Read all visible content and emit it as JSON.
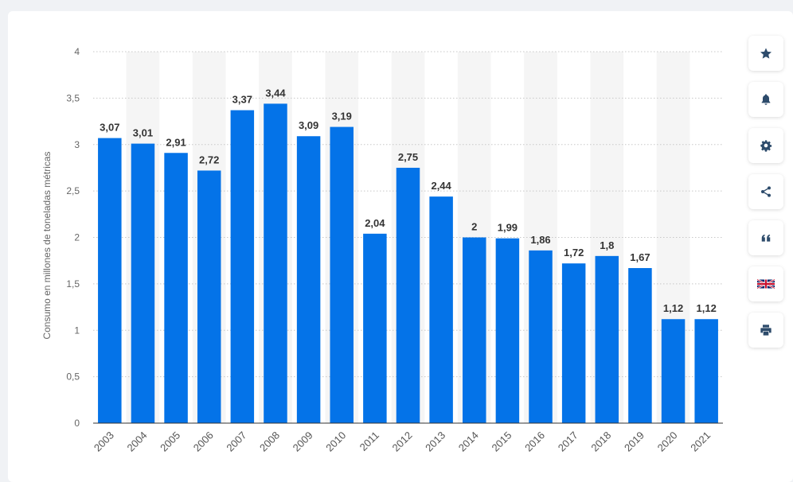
{
  "chart_data": {
    "type": "bar",
    "categories": [
      "2003",
      "2004",
      "2005",
      "2006",
      "2007",
      "2008",
      "2009",
      "2010",
      "2011",
      "2012",
      "2013",
      "2014",
      "2015",
      "2016",
      "2017",
      "2018",
      "2019",
      "2020",
      "2021"
    ],
    "values": [
      3.07,
      3.01,
      2.91,
      2.72,
      3.37,
      3.44,
      3.09,
      3.19,
      2.04,
      2.75,
      2.44,
      2,
      1.99,
      1.86,
      1.72,
      1.8,
      1.67,
      1.12,
      1.12
    ],
    "value_labels": [
      "3,07",
      "3,01",
      "2,91",
      "2,72",
      "3,37",
      "3,44",
      "3,09",
      "3,19",
      "2,04",
      "2,75",
      "2,44",
      "2",
      "1,99",
      "1,86",
      "1,72",
      "1,8",
      "1,67",
      "1,12",
      "1,12"
    ],
    "ylabel": "Consumo en millones de toneladas métricas",
    "xlabel": "",
    "title": "",
    "ylim": [
      0,
      4
    ],
    "yticks": [
      0,
      0.5,
      1,
      1.5,
      2,
      2.5,
      3,
      3.5,
      4
    ],
    "ytick_labels": [
      "0",
      "0,5",
      "1",
      "1,5",
      "2",
      "2,5",
      "3",
      "3,5",
      "4"
    ],
    "grid": true,
    "bar_color": "#0473e8",
    "stripe_color": "#f5f5f5"
  },
  "toolbar": [
    {
      "name": "star-icon"
    },
    {
      "name": "bell-icon"
    },
    {
      "name": "gear-icon"
    },
    {
      "name": "share-icon"
    },
    {
      "name": "quote-icon"
    },
    {
      "name": "flag-uk-icon"
    },
    {
      "name": "print-icon"
    }
  ]
}
